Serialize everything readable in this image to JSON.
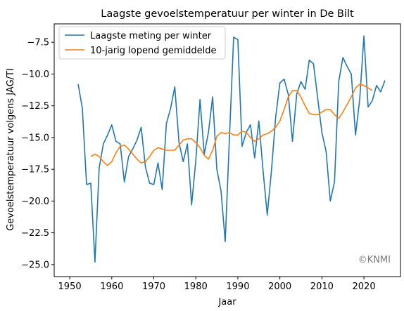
{
  "chart_data": {
    "type": "line",
    "title": "Laagste gevoelstemperatuur per winter in De Bilt",
    "xlabel": "Jaar",
    "ylabel": "Gevoelstemperatuur volgens JAG/TI",
    "xlim": [
      1946.3,
      2028.7
    ],
    "ylim": [
      -25.95,
      -6.05
    ],
    "xticks": [
      1950,
      1960,
      1970,
      1980,
      1990,
      2000,
      2010,
      2020
    ],
    "yticks": [
      -7.5,
      -10.0,
      -12.5,
      -15.0,
      -17.5,
      -20.0,
      -22.5,
      -25.0
    ],
    "legend_position": "top-left",
    "watermark": "©KNMI",
    "series": [
      {
        "name": "Laagste meting per winter",
        "color": "#1f77b4",
        "x": [
          1952,
          1953,
          1954,
          1955,
          1956,
          1957,
          1958,
          1959,
          1960,
          1961,
          1962,
          1963,
          1964,
          1965,
          1966,
          1967,
          1968,
          1969,
          1970,
          1971,
          1972,
          1973,
          1974,
          1975,
          1976,
          1977,
          1978,
          1979,
          1980,
          1981,
          1982,
          1983,
          1984,
          1985,
          1986,
          1987,
          1988,
          1989,
          1990,
          1991,
          1992,
          1993,
          1994,
          1995,
          1996,
          1997,
          1998,
          1999,
          2000,
          2001,
          2002,
          2003,
          2004,
          2005,
          2006,
          2007,
          2008,
          2009,
          2010,
          2011,
          2012,
          2013,
          2014,
          2015,
          2016,
          2017,
          2018,
          2019,
          2020,
          2021,
          2022,
          2023,
          2024,
          2025
        ],
        "y": [
          -10.8,
          -12.7,
          -18.7,
          -18.6,
          -24.8,
          -17.4,
          -15.5,
          -14.8,
          -14.0,
          -15.3,
          -15.5,
          -18.5,
          -16.5,
          -15.9,
          -15.2,
          -14.2,
          -17.3,
          -18.6,
          -18.7,
          -17.0,
          -19.1,
          -13.9,
          -12.7,
          -11.0,
          -15.4,
          -16.9,
          -15.5,
          -20.3,
          -16.8,
          -12.0,
          -16.3,
          -14.6,
          -11.8,
          -17.5,
          -19.2,
          -23.2,
          -15.0,
          -7.1,
          -7.3,
          -15.7,
          -14.6,
          -14.0,
          -16.6,
          -13.7,
          -17.6,
          -21.1,
          -17.6,
          -13.4,
          -10.7,
          -10.4,
          -11.6,
          -15.3,
          -11.6,
          -10.6,
          -11.2,
          -8.9,
          -9.2,
          -11.9,
          -14.6,
          -16.1,
          -20.0,
          -18.5,
          -10.6,
          -8.7,
          -9.4,
          -10.0,
          -14.8,
          -12.0,
          -7.0,
          -12.6,
          -12.1,
          -10.9,
          -11.4,
          -10.5
        ]
      },
      {
        "name": "10-jarig lopend gemiddelde",
        "color": "#ff7f0e",
        "x": [
          1955,
          1956,
          1957,
          1958,
          1959,
          1960,
          1961,
          1962,
          1963,
          1964,
          1965,
          1966,
          1967,
          1968,
          1969,
          1970,
          1971,
          1972,
          1973,
          1974,
          1975,
          1976,
          1977,
          1978,
          1979,
          1980,
          1981,
          1982,
          1983,
          1984,
          1985,
          1986,
          1987,
          1988,
          1989,
          1990,
          1991,
          1992,
          1993,
          1994,
          1995,
          1996,
          1997,
          1998,
          1999,
          2000,
          2001,
          2002,
          2003,
          2004,
          2005,
          2006,
          2007,
          2008,
          2009,
          2010,
          2011,
          2012,
          2013,
          2014,
          2015,
          2016,
          2017,
          2018,
          2019,
          2020,
          2021,
          2022
        ],
        "y": [
          -16.5,
          -16.3,
          -16.5,
          -16.9,
          -17.2,
          -16.9,
          -16.2,
          -15.7,
          -15.6,
          -15.9,
          -16.3,
          -16.7,
          -17.0,
          -16.9,
          -16.5,
          -16.0,
          -15.8,
          -15.9,
          -16.0,
          -16.0,
          -16.0,
          -15.6,
          -15.2,
          -15.1,
          -15.1,
          -15.4,
          -15.8,
          -16.4,
          -16.7,
          -16.0,
          -14.9,
          -14.6,
          -14.7,
          -14.6,
          -14.8,
          -14.8,
          -14.5,
          -14.6,
          -15.0,
          -15.3,
          -15.1,
          -14.8,
          -14.7,
          -14.5,
          -14.2,
          -13.7,
          -12.8,
          -11.8,
          -11.3,
          -11.3,
          -11.8,
          -12.5,
          -13.1,
          -13.2,
          -13.2,
          -13.0,
          -12.8,
          -12.8,
          -13.2,
          -13.5,
          -13.0,
          -12.4,
          -11.8,
          -11.1,
          -10.8,
          -10.9,
          -11.1,
          -11.3
        ]
      }
    ]
  }
}
